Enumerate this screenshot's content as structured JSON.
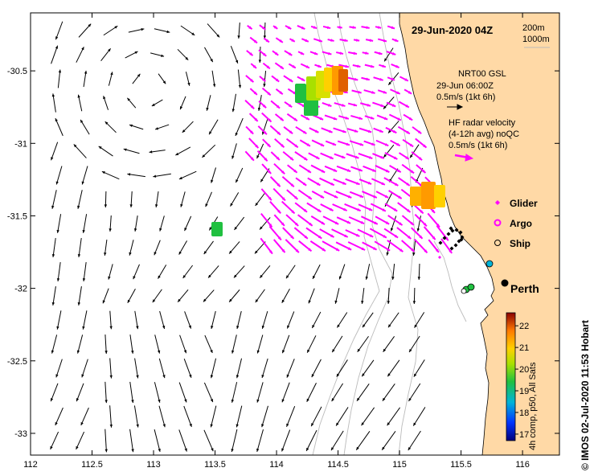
{
  "map": {
    "title": "29-Jun-2020 04Z",
    "lon_ticks": [
      "112",
      "112.5",
      "113",
      "113.5",
      "114",
      "114.5",
      "115",
      "115.5",
      "116"
    ],
    "lat_ticks": [
      "-30.5",
      "-31",
      "-31.5",
      "-32",
      "-32.5",
      "-33"
    ],
    "lon_range": [
      112,
      116.3
    ],
    "lat_range": [
      -30.1,
      -33.15
    ],
    "contours": {
      "shallow": "200m",
      "deep": "1000m"
    },
    "city": "Perth",
    "credit": "© IMOS 02-Jul-2020 11:53 Hobart"
  },
  "legend": {
    "model_lines": [
      "NRT00 GSL",
      "29-Jun 06:00Z",
      "0.5m/s (1kt 6h)"
    ],
    "radar_lines": [
      "HF radar velocity",
      "(4-12h avg) noQC",
      "0.5m/s (1kt 6h)"
    ],
    "platforms": [
      {
        "symbol": "diamond",
        "label": "Glider",
        "color": "#ff00ff"
      },
      {
        "symbol": "ring",
        "label": "Argo",
        "color": "#ff00ff"
      },
      {
        "symbol": "circle",
        "label": "Ship",
        "color": "#000000"
      }
    ]
  },
  "colorbar": {
    "label": "4h comp, p50, All Sats",
    "ticks": [
      "22",
      "21",
      "20",
      "19",
      "18",
      "17"
    ],
    "range": [
      16.7,
      22.6
    ]
  },
  "colors": {
    "land": "#ffd9a6",
    "model_arrow": "#000000",
    "radar_arrow": "#ff00ff",
    "bathymetry": "#bbbbbb"
  }
}
